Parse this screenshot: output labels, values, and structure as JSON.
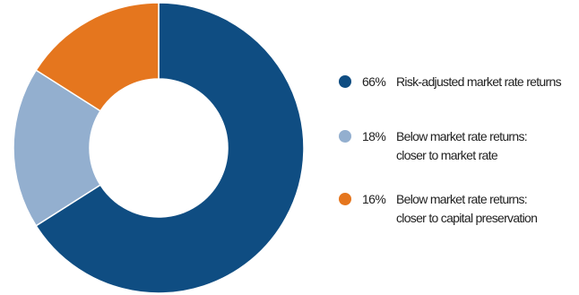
{
  "chart_data": {
    "type": "pie",
    "donut": true,
    "title": "",
    "legend": "right",
    "slices": [
      {
        "percent_label": "66%",
        "value": 66,
        "label_lines": [
          "Risk-adjusted market rate returns"
        ],
        "color": "#0f4d82"
      },
      {
        "percent_label": "18%",
        "value": 18,
        "label_lines": [
          "Below market rate returns:",
          "closer to market rate"
        ],
        "color": "#93afcf"
      },
      {
        "percent_label": "16%",
        "value": 16,
        "label_lines": [
          "Below market rate returns:",
          "closer to capital preservation"
        ],
        "color": "#e5761e"
      }
    ]
  }
}
